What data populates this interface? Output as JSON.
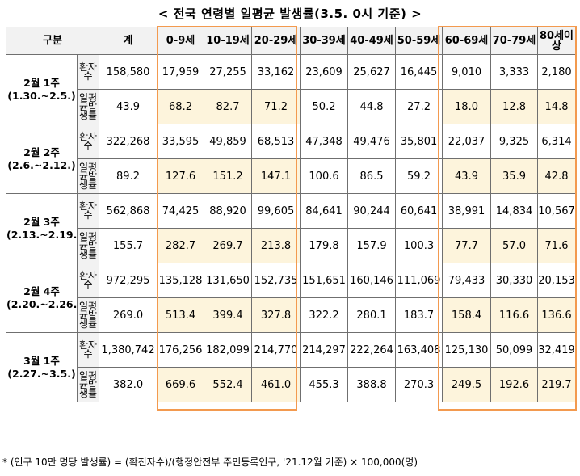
{
  "title": "< 전국 연령별 일평균 발생률(3.5. 0시 기준) >",
  "header": {
    "category": "구분",
    "total": "계",
    "ages": [
      "0-9세",
      "10-19세",
      "20-29세",
      "30-39세",
      "40-49세",
      "50-59세",
      "60-69세",
      "70-79세",
      "80세이상"
    ]
  },
  "row_labels": {
    "patients": "환자수",
    "daily_rate": "일평균발생률"
  },
  "weeks": [
    {
      "label": "2월 1주",
      "range": "(1.30.~2.5.)",
      "patients": [
        "158,580",
        "17,959",
        "27,255",
        "33,162",
        "23,609",
        "25,627",
        "16,445",
        "9,010",
        "3,333",
        "2,180"
      ],
      "rates": [
        "43.9",
        "68.2",
        "82.7",
        "71.2",
        "50.2",
        "44.8",
        "27.2",
        "18.0",
        "12.8",
        "14.8"
      ]
    },
    {
      "label": "2월 2주",
      "range": "(2.6.~2.12.)",
      "patients": [
        "322,268",
        "33,595",
        "49,859",
        "68,513",
        "47,348",
        "49,476",
        "35,801",
        "22,037",
        "9,325",
        "6,314"
      ],
      "rates": [
        "89.2",
        "127.6",
        "151.2",
        "147.1",
        "100.6",
        "86.5",
        "59.2",
        "43.9",
        "35.9",
        "42.8"
      ]
    },
    {
      "label": "2월 3주",
      "range": "(2.13.~2.19.)",
      "patients": [
        "562,868",
        "74,425",
        "88,920",
        "99,605",
        "84,641",
        "90,244",
        "60,641",
        "38,991",
        "14,834",
        "10,567"
      ],
      "rates": [
        "155.7",
        "282.7",
        "269.7",
        "213.8",
        "179.8",
        "157.9",
        "100.3",
        "77.7",
        "57.0",
        "71.6"
      ]
    },
    {
      "label": "2월 4주",
      "range": "(2.20.~2.26.)",
      "patients": [
        "972,295",
        "135,128",
        "131,650",
        "152,735",
        "151,651",
        "160,146",
        "111,069",
        "79,433",
        "30,330",
        "20,153"
      ],
      "rates": [
        "269.0",
        "513.4",
        "399.4",
        "327.8",
        "322.2",
        "280.1",
        "183.7",
        "158.4",
        "116.6",
        "136.6"
      ]
    },
    {
      "label": "3월 1주",
      "range": "(2.27.~3.5.)",
      "patients": [
        "1,380,742",
        "176,256",
        "182,099",
        "214,770",
        "214,297",
        "222,264",
        "163,408",
        "125,130",
        "50,099",
        "32,419"
      ],
      "rates": [
        "382.0",
        "669.6",
        "552.4",
        "461.0",
        "455.3",
        "388.8",
        "270.3",
        "249.5",
        "192.6",
        "219.7"
      ]
    }
  ],
  "footnote": "* (인구 10만 명당 발생률) = (확진자수)/(행정안전부 주민등록인구, '21.12월 기준) × 100,000(명)",
  "colors": {
    "highlight_border": "#f39a4f",
    "highlight_fill": "#fdf4dc",
    "header_fill": "#f2f2f2"
  }
}
